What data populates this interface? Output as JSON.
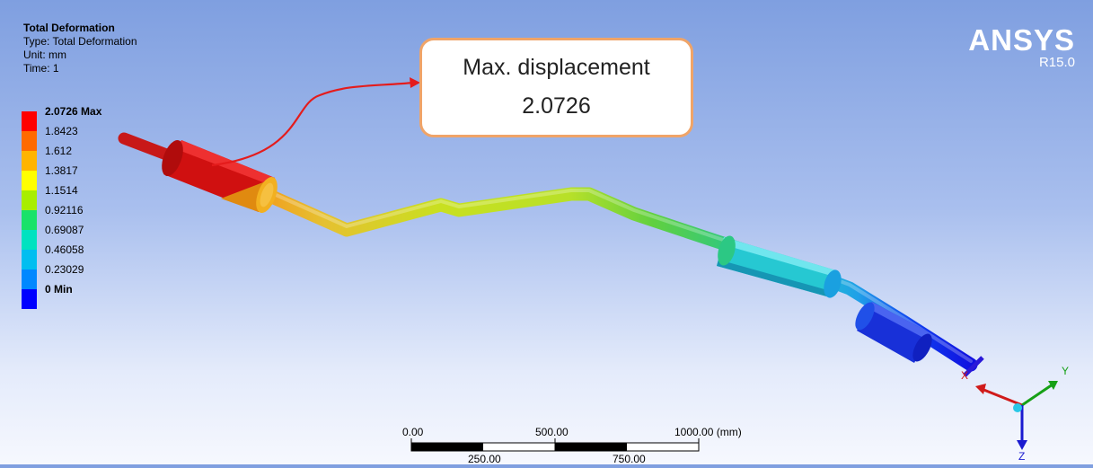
{
  "info": {
    "title": "Total Deformation",
    "type_line": "Type: Total Deformation",
    "unit_line": "Unit: mm",
    "time_line": "Time: 1"
  },
  "legend": {
    "labels": [
      "2.0726 Max",
      "1.8423",
      "1.612",
      "1.3817",
      "1.1514",
      "0.92116",
      "0.69087",
      "0.46058",
      "0.23029",
      "0 Min"
    ],
    "colors": [
      "#ff0000",
      "#ff6a00",
      "#ffb400",
      "#ffff00",
      "#a8ee00",
      "#19e26a",
      "#00e2c0",
      "#00bef0",
      "#0088ff",
      "#0000ff"
    ]
  },
  "brand": {
    "name": "ANSYS",
    "version": "R15.0"
  },
  "callout": {
    "line1": "Max. displacement",
    "line2": "2.0726"
  },
  "scalebar": {
    "top_labels": [
      "0.00",
      "500.00",
      "1000.00 (mm)"
    ],
    "bottom_labels": [
      "250.00",
      "750.00"
    ]
  },
  "triad": {
    "x_label": "X",
    "y_label": "Y",
    "z_label": "Z"
  }
}
